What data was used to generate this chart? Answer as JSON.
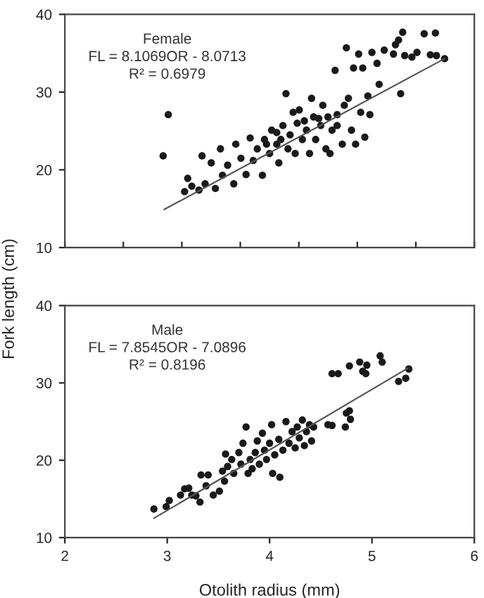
{
  "chart_data": [
    {
      "type": "scatter",
      "ylabel": "Fork length (cm)",
      "annotations": [
        "Female",
        "FL = 8.1069OR - 8.0713",
        "R² = 0.6979"
      ],
      "xlim": [
        2,
        6
      ],
      "ylim": [
        10,
        40
      ],
      "yticks": [
        10,
        20,
        30,
        40
      ],
      "xticks": [
        2,
        2.571,
        3.143,
        3.714,
        4.286,
        4.857,
        5.429,
        6
      ],
      "tick_labels": "y",
      "grid": false,
      "legend": false,
      "series": [
        {
          "marker": "circle",
          "color": "#1a1a1a",
          "x": [
            3.01,
            2.96,
            3.17,
            3.2,
            3.24,
            3.31,
            3.34,
            3.37,
            3.43,
            3.47,
            3.52,
            3.54,
            3.59,
            3.65,
            3.67,
            3.72,
            3.77,
            3.81,
            3.84,
            3.88,
            3.93,
            3.95,
            4.0,
            4.02,
            4.07,
            4.09,
            4.13,
            4.16,
            4.18,
            4.2,
            4.25,
            4.27,
            4.29,
            4.32,
            4.36,
            4.39,
            4.41,
            4.43,
            4.45,
            4.5,
            4.52,
            4.55,
            4.57,
            4.59,
            4.61,
            4.64,
            4.66,
            4.71,
            4.73,
            4.75,
            4.77,
            4.8,
            4.82,
            4.84,
            4.87,
            4.89,
            4.91,
            4.93,
            4.96,
            4.98,
            5.0,
            5.05,
            5.07,
            5.12,
            5.21,
            5.23,
            5.26,
            5.28,
            5.3,
            5.32,
            5.39,
            5.44,
            5.51,
            5.57,
            5.62,
            5.63,
            5.71,
            3.97,
            4.11,
            4.34,
            4.48,
            4.66,
            4.23,
            4.07
          ],
          "values": [
            27.1,
            21.8,
            17.2,
            18.9,
            17.9,
            17.4,
            21.8,
            18.2,
            20.9,
            17.6,
            22.7,
            19.3,
            20.6,
            18.2,
            23.3,
            21.5,
            19.4,
            24.1,
            21.2,
            22.7,
            19.3,
            23.9,
            22.1,
            25.1,
            23.3,
            20.9,
            25.7,
            29.8,
            22.7,
            24.5,
            22.1,
            26.0,
            27.7,
            23.9,
            25.1,
            22.1,
            29.2,
            26.8,
            23.9,
            25.7,
            28.3,
            22.7,
            26.8,
            22.1,
            25.1,
            32.8,
            27.1,
            23.3,
            28.3,
            35.7,
            29.2,
            25.1,
            33.1,
            23.3,
            34.9,
            27.4,
            33.1,
            24.2,
            29.5,
            27.1,
            35.1,
            33.7,
            31.0,
            35.4,
            34.9,
            36.1,
            36.7,
            29.8,
            37.7,
            34.7,
            34.5,
            35.1,
            37.5,
            34.8,
            37.6,
            34.7,
            34.3,
            23.3,
            23.9,
            26.3,
            26.6,
            25.7,
            27.4,
            24.8
          ]
        },
        {
          "type": "line",
          "color": "#555555",
          "x": [
            2.97,
            5.71
          ],
          "values": [
            14.9,
            34.3
          ]
        }
      ]
    },
    {
      "type": "scatter",
      "xlabel": "Otolith radius (mm)",
      "annotations": [
        "Male",
        "FL = 7.8545OR - 7.0896",
        "R² = 0.8196"
      ],
      "xlim": [
        2,
        6
      ],
      "ylim": [
        10,
        40
      ],
      "xticks": [
        2,
        3,
        4,
        5,
        6
      ],
      "yticks": [
        10,
        20,
        30,
        40
      ],
      "grid": false,
      "legend": false,
      "series": [
        {
          "marker": "circle",
          "color": "#1a1a1a",
          "x": [
            2.87,
            2.99,
            3.02,
            3.13,
            3.17,
            3.21,
            3.24,
            3.28,
            3.32,
            3.33,
            3.38,
            3.4,
            3.45,
            3.51,
            3.54,
            3.56,
            3.57,
            3.59,
            3.63,
            3.65,
            3.7,
            3.72,
            3.74,
            3.77,
            3.79,
            3.81,
            3.83,
            3.86,
            3.88,
            3.9,
            3.93,
            3.95,
            3.97,
            4.0,
            4.02,
            4.03,
            4.05,
            4.09,
            4.1,
            4.13,
            4.16,
            4.19,
            4.22,
            4.25,
            4.27,
            4.29,
            4.32,
            4.34,
            4.36,
            4.39,
            4.41,
            4.43,
            4.57,
            4.61,
            4.61,
            4.67,
            4.74,
            4.78,
            4.75,
            4.79,
            4.78,
            4.88,
            4.91,
            4.94,
            4.95,
            5.08,
            5.1,
            5.26,
            5.33,
            5.36
          ],
          "values": [
            13.7,
            14.0,
            14.8,
            15.5,
            16.3,
            16.4,
            15.5,
            15.4,
            14.6,
            18.1,
            16.7,
            18.1,
            15.5,
            16.0,
            18.6,
            17.3,
            20.8,
            19.2,
            20.1,
            18.3,
            21.0,
            19.5,
            22.2,
            24.3,
            18.3,
            20.1,
            18.9,
            21.0,
            22.5,
            19.5,
            23.5,
            21.3,
            20.1,
            22.2,
            24.6,
            18.3,
            20.7,
            22.7,
            17.8,
            21.3,
            25.0,
            22.2,
            23.7,
            21.6,
            24.3,
            22.9,
            25.2,
            21.9,
            23.7,
            24.6,
            22.5,
            24.3,
            24.6,
            24.5,
            31.2,
            31.2,
            24.3,
            26.4,
            26.1,
            25.3,
            32.2,
            32.7,
            31.5,
            31.2,
            32.3,
            33.5,
            32.7,
            30.2,
            30.6,
            31.8
          ]
        },
        {
          "type": "line",
          "color": "#555555",
          "x": [
            2.87,
            5.35
          ],
          "values": [
            12.5,
            31.9
          ]
        }
      ]
    }
  ]
}
